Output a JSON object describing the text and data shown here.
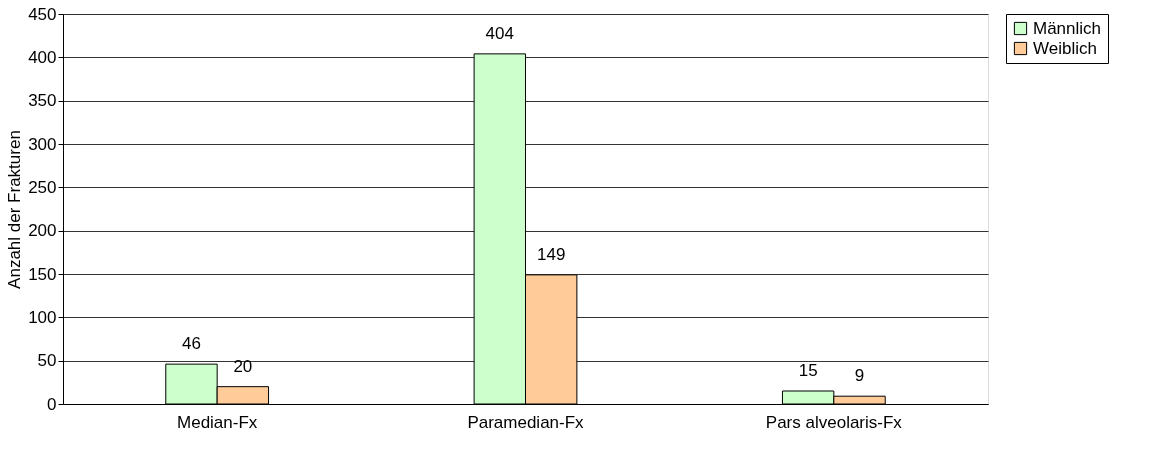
{
  "chart_data": {
    "type": "bar",
    "ylabel": "Anzahl der Frakturen",
    "categories": [
      "Median-Fx",
      "Paramedian-Fx",
      "Pars alveolaris-Fx"
    ],
    "series": [
      {
        "name": "Männlich",
        "color": "#ccffcc",
        "values": [
          46,
          404,
          15
        ]
      },
      {
        "name": "Weiblich",
        "color": "#ffcc99",
        "values": [
          20,
          149,
          9
        ]
      }
    ],
    "ylim": [
      0,
      450
    ],
    "yticks": [
      0,
      50,
      100,
      150,
      200,
      250,
      300,
      350,
      400,
      450
    ],
    "grid": "y",
    "legend": "right",
    "data_labels": true
  }
}
